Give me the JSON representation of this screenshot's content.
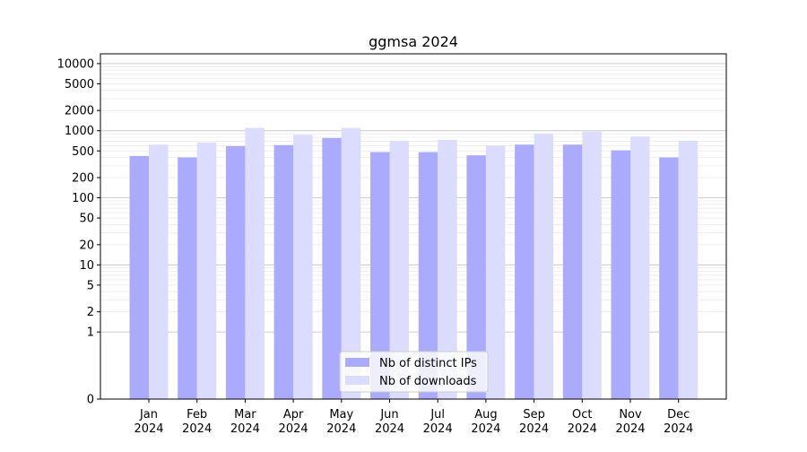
{
  "chart_data": {
    "type": "bar",
    "title": "ggmsa 2024",
    "xlabel": "",
    "ylabel": "",
    "categories": [
      [
        "Jan",
        "2024"
      ],
      [
        "Feb",
        "2024"
      ],
      [
        "Mar",
        "2024"
      ],
      [
        "Apr",
        "2024"
      ],
      [
        "May",
        "2024"
      ],
      [
        "Jun",
        "2024"
      ],
      [
        "Jul",
        "2024"
      ],
      [
        "Aug",
        "2024"
      ],
      [
        "Sep",
        "2024"
      ],
      [
        "Oct",
        "2024"
      ],
      [
        "Nov",
        "2024"
      ],
      [
        "Dec",
        "2024"
      ]
    ],
    "series": [
      {
        "name": "Nb of distinct IPs",
        "color": "#aaaaff",
        "values": [
          420,
          400,
          590,
          610,
          780,
          480,
          480,
          430,
          620,
          620,
          510,
          400
        ]
      },
      {
        "name": "Nb of downloads",
        "color": "#dcdcff",
        "values": [
          620,
          670,
          1100,
          870,
          1100,
          700,
          730,
          600,
          900,
          970,
          820,
          710
        ]
      }
    ],
    "y_scale": "symlog",
    "ylim": [
      0,
      14000
    ],
    "y_ticks": [
      0,
      1,
      2,
      5,
      10,
      20,
      50,
      100,
      200,
      500,
      1000,
      2000,
      5000,
      10000
    ],
    "grid": "y",
    "legend": "bottom-center"
  }
}
